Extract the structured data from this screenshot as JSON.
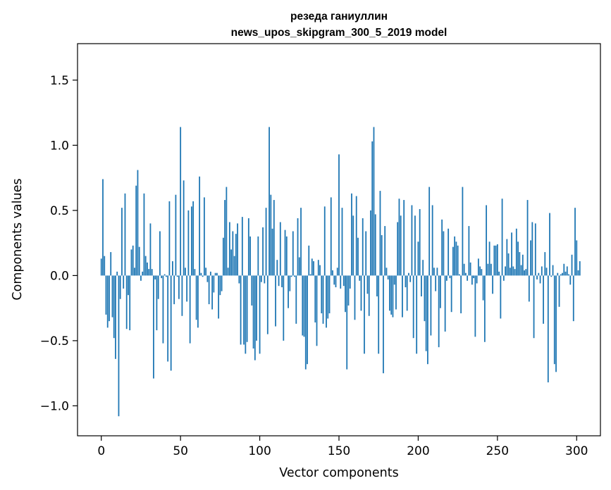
{
  "chart_data": {
    "type": "bar",
    "title_lines": [
      "резеда ганиуллин",
      "news_upos_skipgram_300_5_2019 model"
    ],
    "xlabel": "Vector components",
    "ylabel": "Components values",
    "xlim": [
      -15,
      315
    ],
    "ylim": [
      -1.23,
      1.78
    ],
    "xticks": [
      0,
      50,
      100,
      150,
      200,
      250,
      300
    ],
    "xtick_labels": [
      "0",
      "50",
      "100",
      "150",
      "200",
      "250",
      "300"
    ],
    "yticks": [
      -1.0,
      -0.5,
      0.0,
      0.5,
      1.0,
      1.5
    ],
    "ytick_labels": [
      "−1.0",
      "−0.5",
      "0.0",
      "0.5",
      "1.0",
      "1.5"
    ],
    "grid": false,
    "bar_color": "#1f77b4",
    "values": [
      0.13,
      0.74,
      0.15,
      -0.3,
      -0.4,
      -0.35,
      0.18,
      -0.32,
      -0.48,
      -0.64,
      0.03,
      -1.08,
      -0.18,
      0.52,
      -0.1,
      0.63,
      -0.41,
      -0.15,
      -0.42,
      0.2,
      0.23,
      0.06,
      0.69,
      0.81,
      0.22,
      -0.04,
      0.03,
      0.63,
      0.15,
      0.1,
      0.05,
      0.4,
      0.05,
      -0.79,
      -0.03,
      -0.42,
      -0.18,
      0.34,
      -0.02,
      -0.52,
      0.01,
      -0.01,
      -0.66,
      0.57,
      -0.73,
      0.11,
      -0.22,
      0.62,
      -0.01,
      -0.18,
      1.14,
      -0.31,
      0.73,
      0.06,
      -0.2,
      0.5,
      -0.52,
      0.53,
      0.57,
      0.05,
      -0.34,
      -0.4,
      0.76,
      0.02,
      -0.01,
      0.6,
      0.06,
      -0.05,
      -0.22,
      0.03,
      -0.26,
      -0.13,
      0.02,
      0.02,
      -0.33,
      -0.15,
      -0.12,
      0.29,
      0.58,
      0.68,
      0.06,
      0.41,
      0.2,
      0.34,
      0.15,
      0.32,
      0.4,
      -0.06,
      -0.53,
      0.45,
      -0.53,
      -0.6,
      -0.51,
      0.44,
      0.3,
      -0.23,
      -0.56,
      -0.65,
      -0.5,
      0.3,
      -0.6,
      -0.05,
      0.37,
      -0.06,
      0.52,
      -0.45,
      1.14,
      0.62,
      0.36,
      0.58,
      -0.39,
      0.12,
      -0.08,
      0.41,
      -0.09,
      -0.5,
      0.35,
      0.3,
      -0.25,
      -0.12,
      -0.01,
      0.34,
      -0.01,
      -0.37,
      0.44,
      0.14,
      0.52,
      -0.46,
      -0.47,
      -0.72,
      -0.68,
      0.23,
      0.01,
      0.13,
      0.11,
      -0.36,
      -0.54,
      0.12,
      0.08,
      -0.29,
      -0.37,
      0.53,
      -0.4,
      -0.33,
      -0.29,
      0.6,
      0.04,
      -0.07,
      -0.09,
      0.06,
      0.93,
      -0.1,
      0.52,
      -0.08,
      -0.28,
      -0.72,
      -0.23,
      -0.1,
      0.63,
      0.46,
      -0.34,
      0.61,
      0.29,
      -0.04,
      -0.27,
      0.44,
      -0.6,
      0.34,
      -0.14,
      -0.31,
      0.5,
      1.03,
      1.14,
      0.47,
      -0.16,
      -0.6,
      0.65,
      0.31,
      -0.75,
      0.38,
      0.06,
      -0.03,
      -0.27,
      -0.3,
      -0.32,
      -0.07,
      -0.26,
      0.41,
      0.59,
      0.46,
      -0.32,
      0.58,
      -0.09,
      -0.27,
      0.02,
      -0.05,
      0.54,
      -0.48,
      0.46,
      -0.6,
      0.26,
      0.51,
      -0.16,
      0.12,
      -0.35,
      -0.58,
      -0.68,
      0.68,
      -0.46,
      0.54,
      0.06,
      -0.12,
      0.06,
      -0.55,
      -0.25,
      0.43,
      0.34,
      -0.43,
      -0.04,
      0.36,
      -0.02,
      -0.28,
      0.22,
      0.3,
      0.26,
      0.23,
      0.01,
      -0.29,
      0.68,
      0.09,
      0.02,
      -0.04,
      0.38,
      0.1,
      -0.07,
      -0.02,
      -0.47,
      -0.06,
      0.13,
      0.07,
      0.05,
      -0.19,
      -0.51,
      0.54,
      0.09,
      0.26,
      0.09,
      -0.14,
      0.23,
      0.23,
      0.24,
      0.03,
      -0.33,
      0.59,
      -0.04,
      0.07,
      0.28,
      0.17,
      0.06,
      0.33,
      0.07,
      0.05,
      0.36,
      0.26,
      0.18,
      0.08,
      0.16,
      0.04,
      0.05,
      0.58,
      -0.2,
      0.27,
      0.41,
      -0.48,
      0.4,
      -0.03,
      0.02,
      -0.06,
      0.07,
      -0.37,
      0.18,
      0.06,
      -0.82,
      0.48,
      -0.01,
      0.08,
      -0.68,
      -0.74,
      0.02,
      -0.24,
      0.01,
      0.02,
      0.09,
      0.03,
      0.07,
      0.01,
      -0.07,
      0.16,
      -0.35,
      0.52,
      0.27,
      0.04,
      0.11
    ]
  }
}
